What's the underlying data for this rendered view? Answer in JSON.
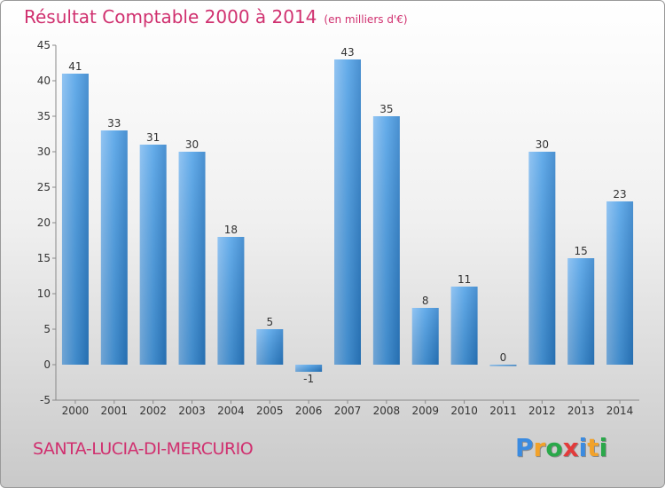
{
  "chart_data": {
    "type": "bar",
    "title": "Résultat Comptable 2000 à 2014",
    "unit": "(en milliers d'€)",
    "categories": [
      "2000",
      "2001",
      "2002",
      "2003",
      "2004",
      "2005",
      "2006",
      "2007",
      "2008",
      "2009",
      "2010",
      "2011",
      "2012",
      "2013",
      "2014"
    ],
    "values": [
      41,
      33,
      31,
      30,
      18,
      5,
      -1,
      43,
      35,
      8,
      11,
      0,
      30,
      15,
      23
    ],
    "ylim": [
      -5,
      45
    ],
    "yticks": [
      -5,
      0,
      5,
      10,
      15,
      20,
      25,
      30,
      35,
      40,
      45
    ],
    "grid": false,
    "bar_color": "#3d8fd3"
  },
  "footer": {
    "place": "SANTA-LUCIA-DI-MERCURIO",
    "logo_letters": [
      {
        "ch": "P",
        "color": "#3b8be0"
      },
      {
        "ch": "r",
        "color": "#f2a22a"
      },
      {
        "ch": "o",
        "color": "#2aa84a"
      },
      {
        "ch": "x",
        "color": "#e23b3b"
      },
      {
        "ch": "i",
        "color": "#3b8be0"
      },
      {
        "ch": "t",
        "color": "#f2a22a"
      },
      {
        "ch": "i",
        "color": "#2aa84a"
      }
    ]
  }
}
